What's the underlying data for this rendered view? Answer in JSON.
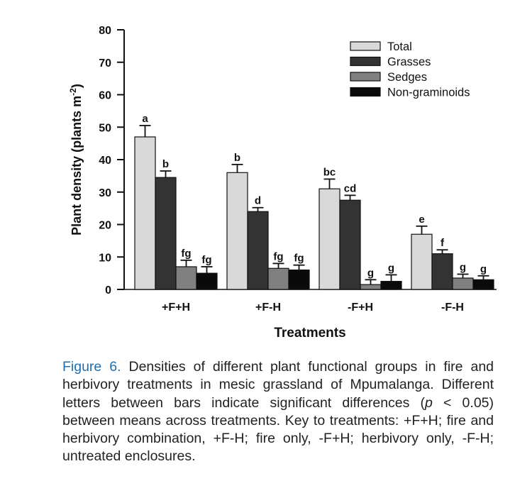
{
  "chart_data": {
    "type": "bar",
    "title": "",
    "xlabel": "Treatments",
    "ylabel_main": "Plant density (plants m",
    "ylabel_sup": "-2",
    "ylabel_close": ")",
    "ylim": [
      0,
      80
    ],
    "yticks": [
      0,
      10,
      20,
      30,
      40,
      50,
      60,
      70,
      80
    ],
    "categories": [
      "+F+H",
      "+F-H",
      "-F+H",
      "-F-H"
    ],
    "legend_position": "top-right",
    "series": [
      {
        "name": "Total",
        "color": "#d9d9d9",
        "values": [
          47,
          36,
          31,
          17
        ],
        "errors": [
          3.5,
          2.5,
          3,
          2.5
        ],
        "letters": [
          "a",
          "b",
          "bc",
          "e"
        ]
      },
      {
        "name": "Grasses",
        "color": "#333333",
        "values": [
          34.5,
          24,
          27.5,
          11
        ],
        "errors": [
          2,
          1.2,
          1.5,
          1.2
        ],
        "letters": [
          "b",
          "d",
          "cd",
          "f"
        ]
      },
      {
        "name": "Sedges",
        "color": "#808080",
        "values": [
          7,
          6.5,
          1.5,
          3.5
        ],
        "errors": [
          2,
          1.5,
          1.5,
          1.2
        ],
        "letters": [
          "fg",
          "fg",
          "g",
          "g"
        ]
      },
      {
        "name": "Non-graminoids",
        "color": "#0a0a0a",
        "values": [
          5,
          6,
          2.5,
          3
        ],
        "errors": [
          2,
          1.5,
          2,
          1.2
        ],
        "letters": [
          "fg",
          "fg",
          "g",
          "g"
        ]
      }
    ]
  },
  "caption": {
    "label": "Figure 6.",
    "part1": " Densities of different plant functional groups in fire and herbivory treatments in mesic grassland of Mpumalanga. Different letters between bars indicate significant differences (",
    "p_symbol": "p",
    "part2": " < 0.05) between means across treatments. Key to treatments: +F+H; fire and herbivory combination, +F-H; fire only, -F+H; herbivory only, -F-H; untreated enclosures."
  }
}
